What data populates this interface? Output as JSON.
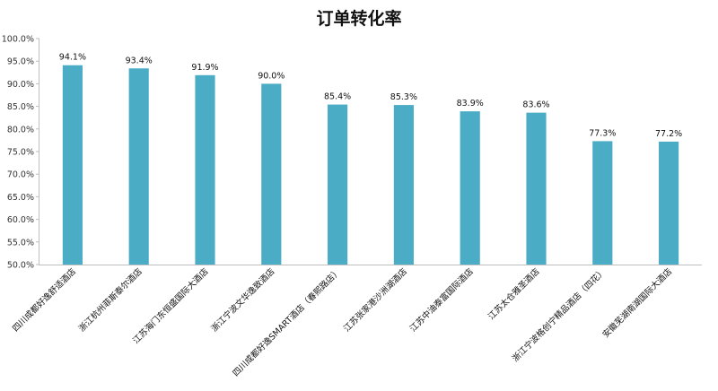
{
  "chart_data": {
    "type": "bar",
    "title": "订单转化率",
    "xlabel": "",
    "ylabel": "",
    "categories": [
      "四川成都好逸舒适酒店",
      "浙江杭州菲斯泰尔酒店",
      "江苏海门东恒盛国际大酒店",
      "浙江宁波文华逸致酒店",
      "四川成都好逸SMART酒店（春熙路店）",
      "江苏张家港沙洲湖酒店",
      "江苏中油泰富国际酒店",
      "江苏太仓雅圣酒店",
      "浙江宁波格创宁精品酒店（四花）",
      "安徽芜湖南湖国际大酒店"
    ],
    "values": [
      94.1,
      93.4,
      91.9,
      90.0,
      85.4,
      85.3,
      83.9,
      83.6,
      77.3,
      77.2
    ],
    "data_labels": [
      "94.1%",
      "93.4%",
      "91.9%",
      "90.0%",
      "85.4%",
      "85.3%",
      "83.9%",
      "83.6%",
      "77.3%",
      "77.2%"
    ],
    "ylim": [
      50,
      100
    ],
    "yticks": [
      50,
      55,
      60,
      65,
      70,
      75,
      80,
      85,
      90,
      95,
      100
    ],
    "ytick_labels": [
      "50.0%",
      "55.0%",
      "60.0%",
      "65.0%",
      "70.0%",
      "75.0%",
      "80.0%",
      "85.0%",
      "90.0%",
      "95.0%",
      "100.0%"
    ],
    "grid": false,
    "legend": "none",
    "bar_color": "#4BACC6",
    "axis_color": "#BFBFBF"
  }
}
